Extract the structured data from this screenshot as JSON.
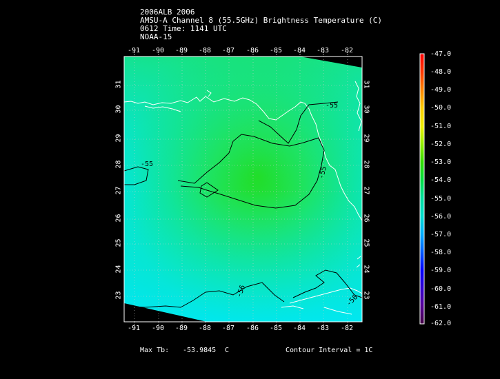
{
  "header": {
    "line1": "2006ALB 2006",
    "line2": "AMSU-A Channel 8 (55.5GHz) Brightness Temperature (C)",
    "line3": "0612 Time: 1141 UTC",
    "line4": "NOAA-15"
  },
  "map": {
    "lon_ticks": [
      "-91",
      "-90",
      "-89",
      "-88",
      "-87",
      "-86",
      "-85",
      "-84",
      "-83",
      "-82"
    ],
    "lat_ticks": [
      "31",
      "30",
      "29",
      "28",
      "27",
      "26",
      "25",
      "24",
      "23"
    ],
    "contour_labels": [
      "-55",
      "-55",
      "-55",
      "-56",
      "-56"
    ]
  },
  "colorbar": {
    "labels": [
      "-47.0",
      "-48.0",
      "-49.0",
      "-50.0",
      "-51.0",
      "-52.0",
      "-53.0",
      "-54.0",
      "-55.0",
      "-56.0",
      "-57.0",
      "-58.0",
      "-59.0",
      "-60.0",
      "-61.0",
      "-62.0"
    ],
    "colors": [
      "#ff0000",
      "#ff4400",
      "#ff8800",
      "#ffcc00",
      "#eeee00",
      "#99ee00",
      "#33dd00",
      "#00dd55",
      "#00dd99",
      "#00ddcc",
      "#00aaff",
      "#0066ff",
      "#0000ff",
      "#3300cc",
      "#550099",
      "#550055"
    ]
  },
  "footer": {
    "max_label": "Max Tb:",
    "max_value": "-53.9845",
    "max_unit": "C",
    "contour": "Contour Interval = 1C"
  }
}
